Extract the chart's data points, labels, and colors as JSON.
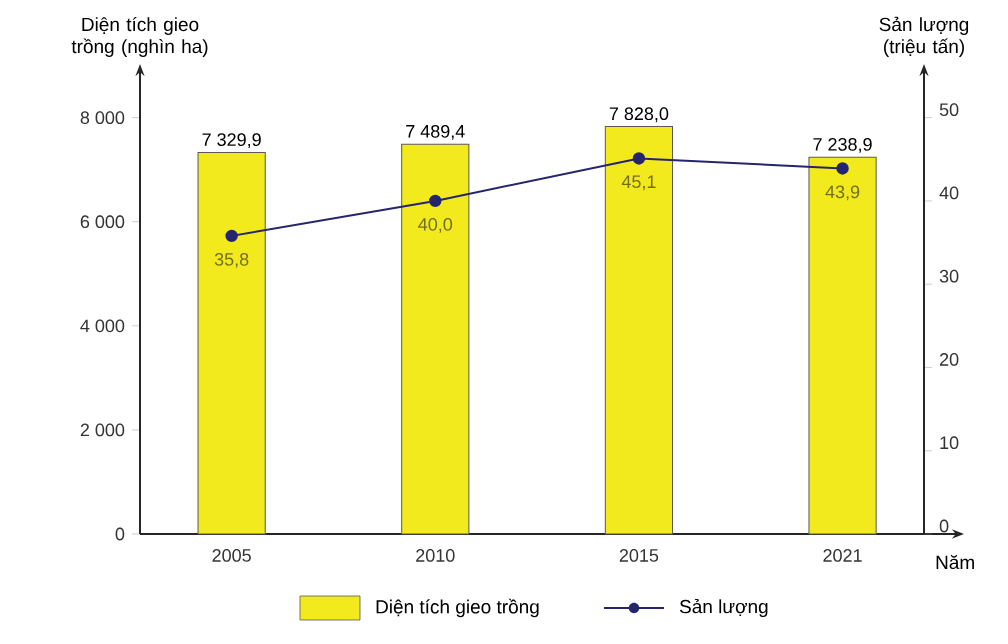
{
  "chart_data": {
    "type": "bar",
    "categories": [
      "2005",
      "2010",
      "2015",
      "2021"
    ],
    "series": [
      {
        "name": "Diện tích gieo trồng",
        "color": "#f2ea1c",
        "values": [
          7329.9,
          7489.4,
          7828.0,
          7238.9
        ],
        "value_labels": [
          "7 329,9",
          "7 489,4",
          "7 828,0",
          "7 238,9"
        ]
      },
      {
        "name": "Sản lượng",
        "type": "line",
        "axis": "y2",
        "color": "#25256e",
        "values": [
          35.8,
          40.0,
          45.1,
          43.9
        ],
        "value_labels": [
          "35,8",
          "40,0",
          "45,1",
          "43,9"
        ]
      }
    ],
    "ylim": [
      0,
      8800
    ],
    "yticks": [
      {
        "value": 0,
        "label": "0"
      },
      {
        "value": 2000,
        "label": "2 000"
      },
      {
        "value": 4000,
        "label": "4 000"
      },
      {
        "value": 6000,
        "label": "6 000"
      },
      {
        "value": 8000,
        "label": "8 000"
      }
    ],
    "y2lim": [
      0,
      55
    ],
    "y2ticks": [
      0,
      10,
      20,
      30,
      40,
      50
    ],
    "xlabel": "Năm",
    "ylabel": "Diện tích gieo trồng (nghìn ha)",
    "y2label": "Sản lượng (triệu tấn)",
    "legend": "bottom",
    "marker": "circle"
  }
}
